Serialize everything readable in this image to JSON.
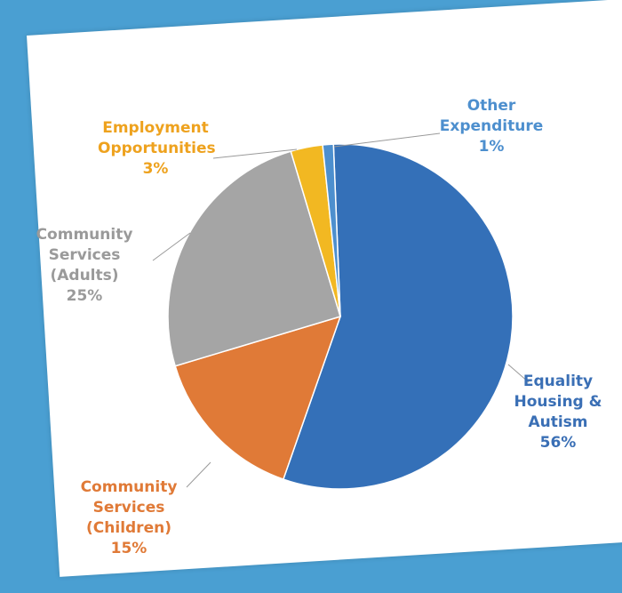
{
  "chart_data": {
    "type": "pie",
    "title": "",
    "slices": [
      {
        "label_lines": [
          "Equality",
          "Housing &",
          "Autism"
        ],
        "value": 56,
        "percent_label": "56%",
        "color": "#3470b8"
      },
      {
        "label_lines": [
          "Community",
          "Services",
          "(Children)"
        ],
        "value": 15,
        "percent_label": "15%",
        "color": "#e07a37"
      },
      {
        "label_lines": [
          "Community",
          "Services",
          "(Adults)"
        ],
        "value": 25,
        "percent_label": "25%",
        "color": "#a5a5a5"
      },
      {
        "label_lines": [
          "Employment",
          "Opportunities"
        ],
        "value": 3,
        "percent_label": "3%",
        "color": "#f2b822"
      },
      {
        "label_lines": [
          "Other",
          "Expenditure"
        ],
        "value": 1,
        "percent_label": "1%",
        "color": "#4d8fce"
      }
    ],
    "label_colors": [
      "#3a6fb5",
      "#e07a37",
      "#9a9a9a",
      "#eea21e",
      "#4d8fce"
    ]
  }
}
